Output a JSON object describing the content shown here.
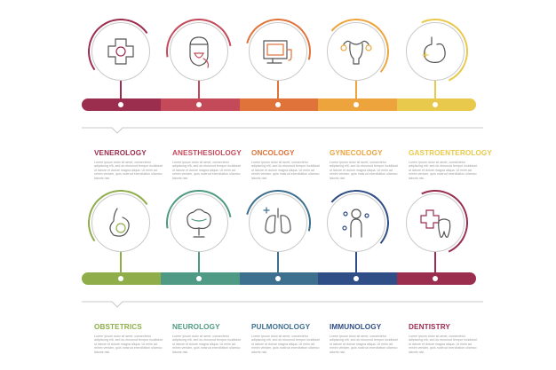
{
  "rows": [
    {
      "items": [
        {
          "title": "VENEROLOGY",
          "icon": "medical-cross-icon",
          "color": "#9b2d4f"
        },
        {
          "title": "ANESTHESIOLOGY",
          "icon": "anesthesia-mask-icon",
          "color": "#c44a5a"
        },
        {
          "title": "ONCOLOGY",
          "icon": "scanner-monitor-icon",
          "color": "#e0733a"
        },
        {
          "title": "GYNECOLOGY",
          "icon": "uterus-icon",
          "color": "#eea43c"
        },
        {
          "title": "GASTROENTEROLOGY",
          "icon": "stomach-icon",
          "color": "#e9c94b"
        }
      ]
    },
    {
      "items": [
        {
          "title": "OBSTETRICS",
          "icon": "pregnancy-icon",
          "color": "#8fae4a"
        },
        {
          "title": "NEUROLOGY",
          "icon": "brain-icon",
          "color": "#4f9a84"
        },
        {
          "title": "PULMONOLOGY",
          "icon": "lungs-icon",
          "color": "#3d6f8e"
        },
        {
          "title": "IMMUNOLOGY",
          "icon": "immunity-icon",
          "color": "#2f4d86"
        },
        {
          "title": "DENTISTRY",
          "icon": "tooth-icon",
          "color": "#9b2d4f"
        }
      ]
    }
  ],
  "body_text": "Lorem ipsum dolor sit amet, consectetur adipiscing elit, sed do eiusmod tempor incididunt ut labore et dolore magna aliqua. Ut enim ad minim veniam, quis nostrud exercitation ullamco laboris nisi."
}
